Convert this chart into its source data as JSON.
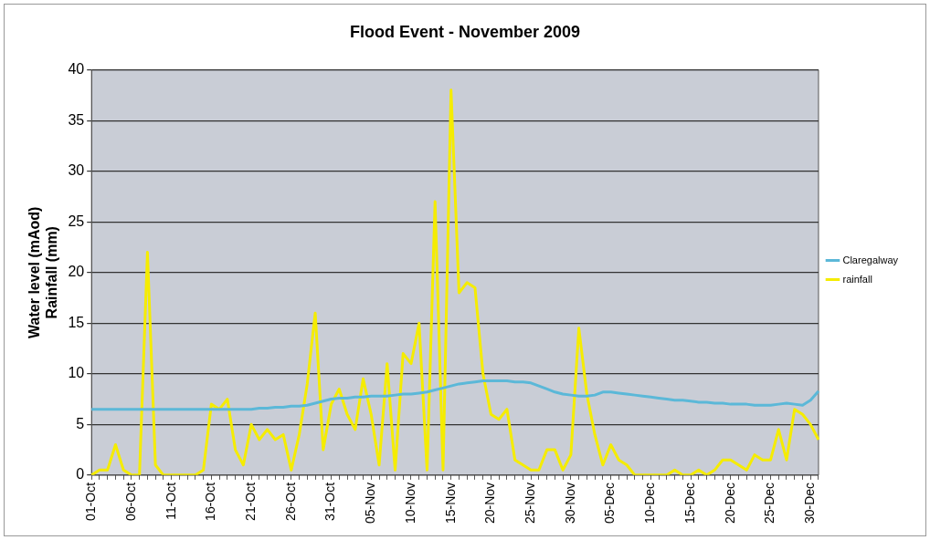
{
  "chart_data": {
    "type": "line",
    "title": "Flood Event - November 2009",
    "ylabel": "Water level (mAod)\nRainfall (mm)",
    "categories": [
      "01-Oct",
      null,
      null,
      null,
      null,
      "06-Oct",
      null,
      null,
      null,
      null,
      "11-Oct",
      null,
      null,
      null,
      null,
      "16-Oct",
      null,
      null,
      null,
      null,
      "21-Oct",
      null,
      null,
      null,
      null,
      "26-Oct",
      null,
      null,
      null,
      null,
      "31-Oct",
      null,
      null,
      null,
      null,
      "05-Nov",
      null,
      null,
      null,
      null,
      "10-Nov",
      null,
      null,
      null,
      null,
      "15-Nov",
      null,
      null,
      null,
      null,
      "20-Nov",
      null,
      null,
      null,
      null,
      "25-Nov",
      null,
      null,
      null,
      null,
      "30-Nov",
      null,
      null,
      null,
      null,
      "05-Dec",
      null,
      null,
      null,
      null,
      "10-Dec",
      null,
      null,
      null,
      null,
      "15-Dec",
      null,
      null,
      null,
      null,
      "20-Dec",
      null,
      null,
      null,
      null,
      "25-Dec",
      null,
      null,
      null,
      null,
      "30-Dec",
      null
    ],
    "series": [
      {
        "name": "Claregalway",
        "color": "#5bb8d8",
        "values": [
          6.5,
          6.5,
          6.5,
          6.5,
          6.5,
          6.5,
          6.5,
          6.5,
          6.5,
          6.5,
          6.5,
          6.5,
          6.5,
          6.5,
          6.5,
          6.5,
          6.5,
          6.5,
          6.5,
          6.5,
          6.5,
          6.6,
          6.6,
          6.7,
          6.7,
          6.8,
          6.8,
          6.9,
          7.1,
          7.3,
          7.5,
          7.6,
          7.6,
          7.7,
          7.7,
          7.8,
          7.8,
          7.8,
          7.9,
          8,
          8,
          8.1,
          8.2,
          8.4,
          8.6,
          8.8,
          9,
          9.1,
          9.2,
          9.3,
          9.3,
          9.3,
          9.3,
          9.2,
          9.2,
          9.1,
          8.8,
          8.5,
          8.2,
          8,
          7.9,
          7.8,
          7.8,
          7.9,
          8.2,
          8.2,
          8.1,
          8,
          7.9,
          7.8,
          7.7,
          7.6,
          7.5,
          7.4,
          7.4,
          7.3,
          7.2,
          7.2,
          7.1,
          7.1,
          7,
          7,
          7,
          6.9,
          6.9,
          6.9,
          7,
          7.1,
          7,
          6.9,
          7.4,
          8.3
        ]
      },
      {
        "name": "rainfall",
        "color": "#f5ec00",
        "values": [
          0,
          0.5,
          0.5,
          3,
          0.5,
          0,
          0,
          22,
          1,
          0,
          0,
          0,
          0,
          0,
          0.5,
          7,
          6.5,
          7.5,
          2.5,
          1,
          5,
          3.5,
          4.5,
          3.5,
          4,
          0.5,
          4,
          9,
          16,
          2.5,
          7,
          8.5,
          6,
          4.5,
          9.5,
          6,
          1,
          11,
          0.5,
          12,
          11,
          15,
          0.5,
          27,
          0.5,
          38,
          18,
          19,
          18.5,
          10,
          6,
          5.5,
          6.5,
          1.5,
          1,
          0.5,
          0.5,
          2.5,
          2.5,
          0.5,
          2,
          14.5,
          8,
          4,
          1,
          3,
          1.5,
          1,
          0,
          0,
          0,
          0,
          0,
          0.5,
          0,
          0,
          0.5,
          0,
          0.5,
          1.5,
          1.5,
          1,
          0.5,
          2,
          1.5,
          1.5,
          4.5,
          1.5,
          6.5,
          6,
          5,
          3.5
        ]
      }
    ],
    "ylim": [
      0,
      40
    ],
    "yticks": [
      0,
      5,
      10,
      15,
      20,
      25,
      30,
      35,
      40
    ],
    "grid": "y",
    "legend": "right",
    "marker": "none",
    "line_style": "solid"
  }
}
